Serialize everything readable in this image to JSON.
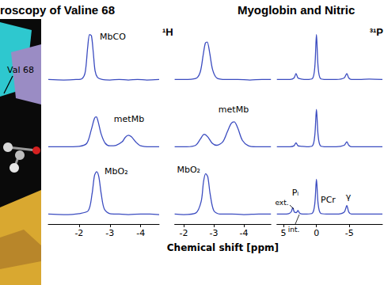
{
  "header": {
    "left_title": "roscopy of Valine 68",
    "right_title": "Myoglobin and Nitric"
  },
  "structure_label": "Val 68",
  "chart_data": [
    {
      "type": "line",
      "title": "¹H",
      "color": "#3b4cc0",
      "grid": false,
      "tick_labels": "x",
      "xlim": [
        -1.0,
        -4.6
      ],
      "xticks": [
        -2,
        -3,
        -4
      ],
      "ylim": [
        -0.15,
        1.2
      ],
      "series": [
        {
          "name": "MbCO",
          "x": [
            -1.0,
            -1.5,
            -1.9,
            -2.1,
            -2.2,
            -2.28,
            -2.34,
            -2.4,
            -2.46,
            -2.52,
            -2.6,
            -2.75,
            -3.0,
            -3.3,
            -3.6,
            -3.9,
            -4.2,
            -4.6
          ],
          "values": [
            0.05,
            0.04,
            0.05,
            0.07,
            0.2,
            0.7,
            0.95,
            0.93,
            0.6,
            0.22,
            0.09,
            0.05,
            0.04,
            0.05,
            0.04,
            0.05,
            0.04,
            0.05
          ]
        },
        {
          "name": "metMb",
          "x": [
            -1.0,
            -1.5,
            -2.0,
            -2.25,
            -2.4,
            -2.5,
            -2.56,
            -2.62,
            -2.72,
            -2.85,
            -3.0,
            -3.2,
            -3.4,
            -3.5,
            -3.6,
            -3.7,
            -3.85,
            -4.0,
            -4.3,
            -4.6
          ],
          "values": [
            0.05,
            0.05,
            0.06,
            0.12,
            0.4,
            0.62,
            0.65,
            0.55,
            0.3,
            0.12,
            0.07,
            0.08,
            0.15,
            0.24,
            0.28,
            0.25,
            0.14,
            0.07,
            0.05,
            0.05
          ]
        },
        {
          "name": "MbO₂",
          "x": [
            -1.0,
            -1.5,
            -2.0,
            -2.3,
            -2.42,
            -2.5,
            -2.57,
            -2.64,
            -2.72,
            -2.82,
            -3.0,
            -3.3,
            -3.6,
            -4.0,
            -4.3,
            -4.6
          ],
          "values": [
            0.05,
            0.04,
            0.06,
            0.12,
            0.45,
            0.82,
            0.9,
            0.8,
            0.45,
            0.15,
            0.06,
            0.05,
            0.04,
            0.05,
            0.05,
            0.04
          ]
        }
      ]
    },
    {
      "type": "line",
      "color": "#3b4cc0",
      "grid": false,
      "tick_labels": "x",
      "xlabel": "Chemical shift [ppm]",
      "xlim": [
        -1.7,
        -4.9
      ],
      "xticks": [
        -2,
        -3,
        -4
      ],
      "ylim": [
        -0.15,
        1.2
      ],
      "series": [
        {
          "x": [
            -1.7,
            -2.0,
            -2.4,
            -2.55,
            -2.65,
            -2.72,
            -2.78,
            -2.86,
            -2.96,
            -3.1,
            -3.4,
            -3.8,
            -4.2,
            -4.6,
            -4.9
          ],
          "values": [
            0.05,
            0.05,
            0.07,
            0.2,
            0.55,
            0.78,
            0.8,
            0.6,
            0.25,
            0.08,
            0.05,
            0.05,
            0.04,
            0.05,
            0.05
          ]
        },
        {
          "name": "metMb",
          "x": [
            -1.7,
            -2.1,
            -2.4,
            -2.55,
            -2.68,
            -2.8,
            -2.95,
            -3.1,
            -3.3,
            -3.45,
            -3.58,
            -3.68,
            -3.8,
            -3.95,
            -4.15,
            -4.4,
            -4.9
          ],
          "values": [
            0.05,
            0.05,
            0.08,
            0.2,
            0.3,
            0.25,
            0.12,
            0.08,
            0.15,
            0.35,
            0.52,
            0.55,
            0.42,
            0.18,
            0.07,
            0.05,
            0.05
          ]
        },
        {
          "name": "MbO₂",
          "x": [
            -1.7,
            -2.0,
            -2.4,
            -2.58,
            -2.66,
            -2.73,
            -2.8,
            -2.88,
            -3.0,
            -3.2,
            -3.6,
            -4.0,
            -4.5,
            -4.9
          ],
          "values": [
            0.05,
            0.04,
            0.07,
            0.3,
            0.7,
            0.86,
            0.8,
            0.45,
            0.12,
            0.05,
            0.05,
            0.04,
            0.05,
            0.05
          ]
        }
      ]
    },
    {
      "type": "line",
      "title": "³¹P",
      "color": "#3b4cc0",
      "grid": false,
      "tick_labels": "x",
      "xlim": [
        6,
        -10
      ],
      "xticks": [
        5,
        0,
        -5
      ],
      "ylim": [
        -0.15,
        1.2
      ],
      "annotations": [
        "Pᵢ",
        "ext.",
        "int.",
        "PCr",
        "γ"
      ],
      "series": [
        {
          "x": [
            6,
            5,
            4,
            3.4,
            3.1,
            2.8,
            2.3,
            1.5,
            0.6,
            0.25,
            0,
            -0.25,
            -0.6,
            -1.5,
            -3,
            -4.2,
            -4.6,
            -4.9,
            -5.3,
            -6.5,
            -8,
            -10
          ],
          "values": [
            0.05,
            0.05,
            0.05,
            0.08,
            0.17,
            0.08,
            0.06,
            0.05,
            0.07,
            0.3,
            0.95,
            0.3,
            0.07,
            0.05,
            0.05,
            0.08,
            0.17,
            0.08,
            0.05,
            0.05,
            0.06,
            0.05
          ]
        },
        {
          "x": [
            6,
            5,
            4,
            3.4,
            3.1,
            2.8,
            2.3,
            1.5,
            0.6,
            0.25,
            0,
            -0.25,
            -0.6,
            -1.5,
            -3,
            -4.2,
            -4.6,
            -4.9,
            -5.3,
            -6.5,
            -8,
            -10
          ],
          "values": [
            0.05,
            0.05,
            0.05,
            0.07,
            0.13,
            0.07,
            0.06,
            0.05,
            0.07,
            0.28,
            0.8,
            0.28,
            0.07,
            0.05,
            0.05,
            0.08,
            0.15,
            0.08,
            0.05,
            0.05,
            0.05,
            0.05
          ]
        },
        {
          "x": [
            6,
            5,
            4.2,
            3.8,
            3.6,
            3.35,
            3.05,
            2.8,
            2.55,
            2.1,
            1.5,
            0.6,
            0.25,
            0,
            -0.25,
            -0.6,
            -1.5,
            -3,
            -4.2,
            -4.6,
            -4.9,
            -5.3,
            -6.5,
            -8,
            -10
          ],
          "values": [
            0.05,
            0.05,
            0.06,
            0.1,
            0.18,
            0.09,
            0.08,
            0.12,
            0.07,
            0.05,
            0.05,
            0.07,
            0.26,
            0.75,
            0.26,
            0.07,
            0.05,
            0.05,
            0.09,
            0.22,
            0.09,
            0.05,
            0.05,
            0.05,
            0.05
          ]
        }
      ]
    }
  ]
}
